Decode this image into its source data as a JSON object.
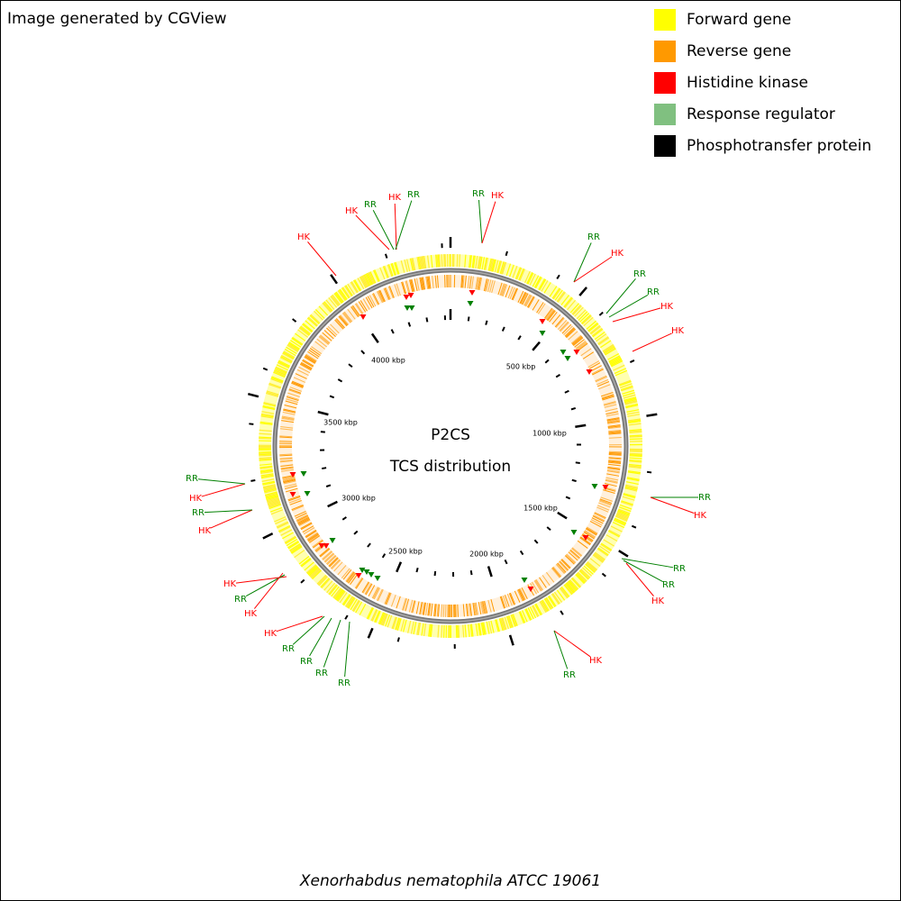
{
  "header": {
    "title": "Image generated by CGView"
  },
  "legend": [
    {
      "label": "Forward gene",
      "color": "#ffff00"
    },
    {
      "label": "Reverse gene",
      "color": "#ff9900"
    },
    {
      "label": "Histidine kinase",
      "color": "#ff0000"
    },
    {
      "label": "Response regulator",
      "color": "#80c080"
    },
    {
      "label": "Phosphotransfer protein",
      "color": "#000000"
    }
  ],
  "map": {
    "title": "P2CS",
    "subtitle": "TCS distribution",
    "scale_labels": [
      "500 kbp",
      "1000 kbp",
      "1500 kbp",
      "2000 kbp",
      "2500 kbp",
      "3000 kbp",
      "3500 kbp",
      "4000 kbp"
    ],
    "features": [
      {
        "label": "RR",
        "color": "#008000"
      },
      {
        "label": "HK",
        "color": "#ff0000"
      },
      {
        "label": "RR",
        "color": "#008000"
      },
      {
        "label": "HK",
        "color": "#ff0000"
      },
      {
        "label": "RR",
        "color": "#008000"
      },
      {
        "label": "RR",
        "color": "#008000"
      },
      {
        "label": "HK",
        "color": "#ff0000"
      },
      {
        "label": "HK",
        "color": "#ff0000"
      },
      {
        "label": "RR",
        "color": "#008000"
      },
      {
        "label": "HK",
        "color": "#ff0000"
      },
      {
        "label": "RR",
        "color": "#008000"
      },
      {
        "label": "RR",
        "color": "#008000"
      },
      {
        "label": "HK",
        "color": "#ff0000"
      },
      {
        "label": "HK",
        "color": "#ff0000"
      },
      {
        "label": "RR",
        "color": "#008000"
      },
      {
        "label": "RR",
        "color": "#008000"
      },
      {
        "label": "RR",
        "color": "#008000"
      },
      {
        "label": "RR",
        "color": "#008000"
      },
      {
        "label": "RR",
        "color": "#008000"
      },
      {
        "label": "HK",
        "color": "#ff0000"
      },
      {
        "label": "HK",
        "color": "#ff0000"
      },
      {
        "label": "RR",
        "color": "#008000"
      },
      {
        "label": "HK",
        "color": "#ff0000"
      },
      {
        "label": "HK",
        "color": "#ff0000"
      },
      {
        "label": "RR",
        "color": "#008000"
      },
      {
        "label": "HK",
        "color": "#ff0000"
      },
      {
        "label": "RR",
        "color": "#008000"
      },
      {
        "label": "HK",
        "color": "#ff0000"
      },
      {
        "label": "HK",
        "color": "#ff0000"
      },
      {
        "label": "RR",
        "color": "#008000"
      },
      {
        "label": "HK",
        "color": "#ff0000"
      },
      {
        "label": "RR",
        "color": "#008000"
      }
    ]
  },
  "footer": {
    "organism": "Xenorhabdus nematophila ATCC 19061"
  }
}
